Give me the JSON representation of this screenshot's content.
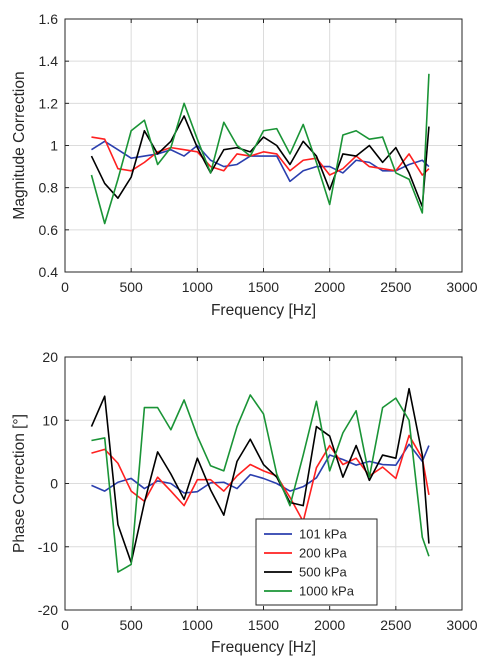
{
  "chart_data": [
    {
      "type": "line",
      "xlabel": "Frequency [Hz]",
      "ylabel": "Magnitude Correction",
      "xlim": [
        0,
        3000
      ],
      "ylim": [
        0.4,
        1.6
      ],
      "xticks": [
        0,
        500,
        1000,
        1500,
        2000,
        2500,
        3000
      ],
      "yticks": [
        0.4,
        0.6,
        0.8,
        1,
        1.2,
        1.4,
        1.6
      ],
      "xtick_labels": [
        "0",
        "500",
        "1000",
        "1500",
        "2000",
        "2500",
        "3000"
      ],
      "ytick_labels": [
        "0.4",
        "0.6",
        "0.8",
        "1",
        "1.2",
        "1.4",
        "1.6"
      ],
      "grid": true,
      "x": [
        200,
        300,
        400,
        500,
        600,
        700,
        800,
        900,
        1000,
        1100,
        1200,
        1300,
        1400,
        1500,
        1600,
        1700,
        1800,
        1900,
        2000,
        2100,
        2200,
        2300,
        2400,
        2500,
        2600,
        2700,
        2750
      ],
      "series": [
        {
          "name": "101 kPa",
          "color": "#2b3fae",
          "values": [
            0.98,
            1.02,
            0.98,
            0.94,
            0.95,
            0.96,
            0.98,
            0.95,
            1.0,
            0.93,
            0.9,
            0.91,
            0.95,
            0.95,
            0.95,
            0.83,
            0.88,
            0.9,
            0.9,
            0.87,
            0.93,
            0.92,
            0.88,
            0.88,
            0.91,
            0.93,
            0.9
          ]
        },
        {
          "name": "200 kPa",
          "color": "#ff2020",
          "values": [
            1.04,
            1.03,
            0.89,
            0.88,
            0.92,
            0.97,
            0.99,
            0.98,
            0.97,
            0.9,
            0.88,
            0.96,
            0.95,
            0.97,
            0.96,
            0.88,
            0.93,
            0.94,
            0.86,
            0.89,
            0.95,
            0.9,
            0.89,
            0.88,
            0.96,
            0.86,
            0.89
          ]
        },
        {
          "name": "500 kPa",
          "color": "#000000",
          "values": [
            0.95,
            0.82,
            0.75,
            0.85,
            1.07,
            0.96,
            1.02,
            1.14,
            0.99,
            0.87,
            0.98,
            0.99,
            0.97,
            1.04,
            1.0,
            0.91,
            1.02,
            0.95,
            0.79,
            0.96,
            0.95,
            1.0,
            0.92,
            0.99,
            0.87,
            0.71,
            1.09
          ]
        },
        {
          "name": "1000 kPa",
          "color": "#1a9436",
          "values": [
            0.86,
            0.63,
            0.84,
            1.07,
            1.12,
            0.91,
            0.99,
            1.2,
            1.03,
            0.87,
            1.11,
            1.0,
            0.95,
            1.07,
            1.08,
            0.96,
            1.1,
            0.92,
            0.72,
            1.05,
            1.07,
            1.03,
            1.04,
            0.87,
            0.84,
            0.68,
            1.34
          ]
        }
      ]
    },
    {
      "type": "line",
      "xlabel": "Frequency [Hz]",
      "ylabel": "Phase Correction [°]",
      "xlim": [
        0,
        3000
      ],
      "ylim": [
        -20,
        20
      ],
      "xticks": [
        0,
        500,
        1000,
        1500,
        2000,
        2500,
        3000
      ],
      "yticks": [
        -20,
        -10,
        0,
        10,
        20
      ],
      "xtick_labels": [
        "0",
        "500",
        "1000",
        "1500",
        "2000",
        "2500",
        "3000"
      ],
      "ytick_labels": [
        "-20",
        "-10",
        "0",
        "10",
        "20"
      ],
      "grid": true,
      "legend": {
        "position": "bottom-center",
        "entries": [
          "101 kPa",
          "200 kPa",
          "500 kPa",
          "1000 kPa"
        ]
      },
      "x": [
        200,
        300,
        400,
        500,
        600,
        700,
        800,
        900,
        1000,
        1100,
        1200,
        1300,
        1400,
        1500,
        1600,
        1700,
        1800,
        1900,
        2000,
        2100,
        2200,
        2300,
        2400,
        2500,
        2600,
        2700,
        2750
      ],
      "series": [
        {
          "name": "101 kPa",
          "color": "#2b3fae",
          "values": [
            -0.3,
            -1.2,
            0.2,
            0.8,
            -0.8,
            0.4,
            0.0,
            -1.5,
            -1.3,
            0.1,
            0.2,
            -0.8,
            1.4,
            0.8,
            0.0,
            -1.2,
            -0.5,
            0.9,
            4.5,
            3.8,
            2.9,
            3.5,
            3.0,
            2.9,
            6.2,
            3.5,
            6.0
          ]
        },
        {
          "name": "200 kPa",
          "color": "#ff2020",
          "values": [
            4.8,
            5.4,
            3.2,
            -1.2,
            -2.8,
            1.0,
            -1.2,
            -3.5,
            0.6,
            0.6,
            -1.2,
            1.2,
            3.0,
            2.0,
            1.2,
            -2.2,
            -6.0,
            2.5,
            6.0,
            3.0,
            4.0,
            1.2,
            2.6,
            0.8,
            7.6,
            4.0,
            -1.8
          ]
        },
        {
          "name": "500 kPa",
          "color": "#000000",
          "values": [
            9.0,
            13.8,
            -6.5,
            -12.5,
            -3.0,
            5.0,
            1.5,
            -2.5,
            4.0,
            -1.0,
            -5.0,
            3.5,
            7.0,
            3.0,
            1.0,
            -3.0,
            -3.5,
            9.0,
            7.5,
            1.0,
            6.0,
            0.5,
            4.5,
            4.0,
            15.0,
            4.5,
            -9.5
          ]
        },
        {
          "name": "1000 kPa",
          "color": "#1a9436",
          "values": [
            6.8,
            7.2,
            -14.0,
            -12.8,
            12.0,
            12.0,
            8.5,
            13.2,
            7.5,
            2.8,
            2.0,
            9.0,
            14.0,
            11.0,
            1.5,
            -3.5,
            4.5,
            13.0,
            2.0,
            8.0,
            11.5,
            1.0,
            12.0,
            13.5,
            10.0,
            -8.5,
            -11.5
          ]
        }
      ]
    }
  ]
}
